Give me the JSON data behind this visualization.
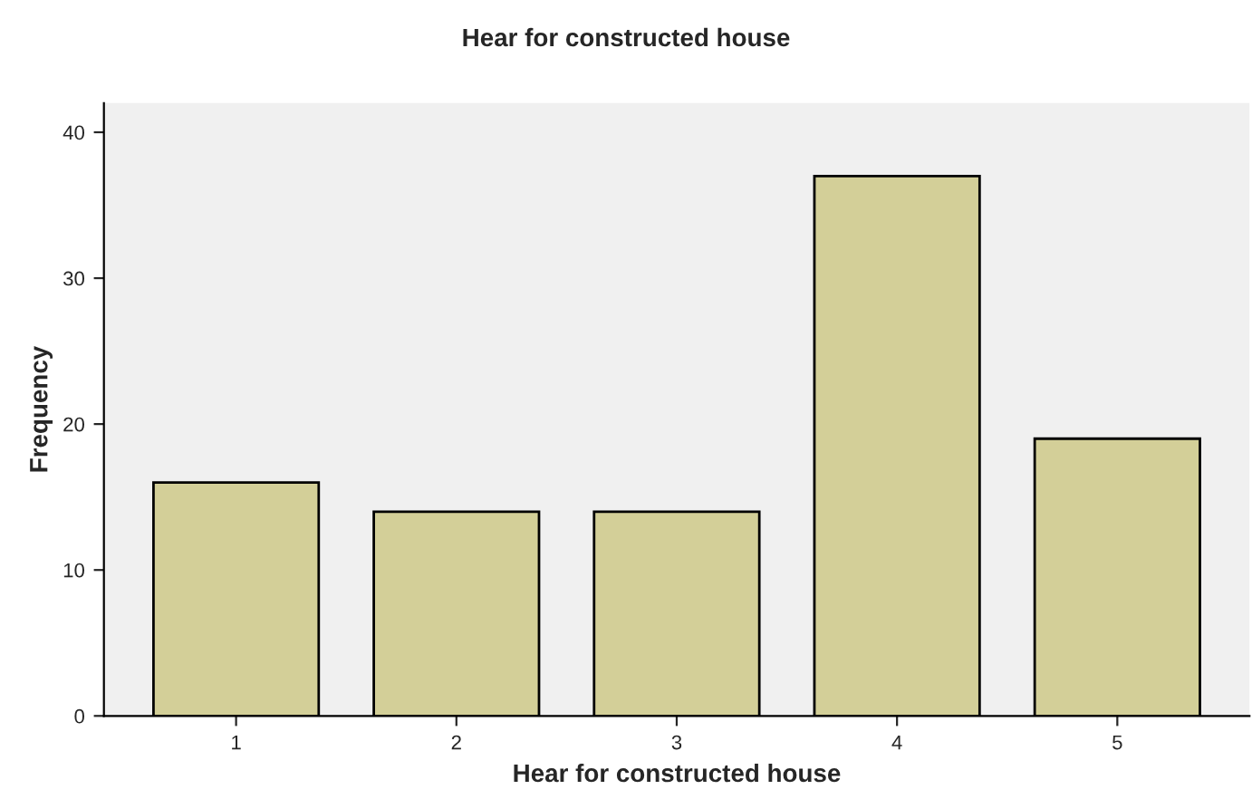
{
  "chart_data": {
    "type": "bar",
    "title": "Hear for constructed house",
    "xlabel": "Hear for constructed house",
    "ylabel": "Frequency",
    "categories": [
      "1",
      "2",
      "3",
      "4",
      "5"
    ],
    "values": [
      16,
      14,
      14,
      37,
      19
    ],
    "color": "#d3cf98",
    "ylim": [
      0,
      42
    ],
    "yticks": [
      0,
      10,
      20,
      30,
      40
    ],
    "grid": false,
    "legend": false
  }
}
